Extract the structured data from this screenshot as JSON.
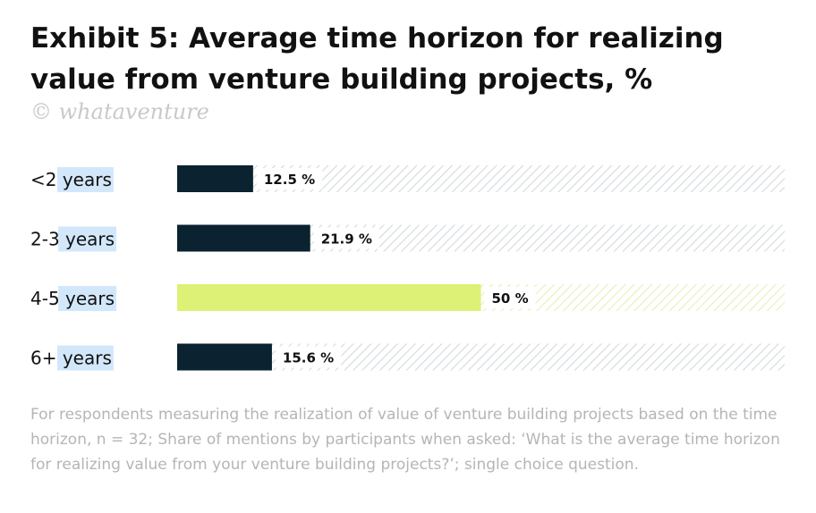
{
  "title": "Exhibit 5: Average time horizon for realizing value from venture building projects, %",
  "watermark": "© whataventure",
  "footnote": "For respondents measuring the realization of value of venture building projects based on the time horizon, n = 32; Share of mentions by participants when asked: ‘What is the average time horizon for realizing value from your venture building projects?’; single choice question.",
  "colors": {
    "dark_bar": "#0b2230",
    "highlight_bar": "#dcf176",
    "hatch_dark": "#d3d9dd",
    "hatch_highlight": "#e5f0b6",
    "label_highlight": "#d3e7fb"
  },
  "chart_data": {
    "type": "bar",
    "orientation": "horizontal",
    "categories": [
      "<2 years",
      "2-3 years",
      "4-5 years",
      "6+ years"
    ],
    "values": [
      12.5,
      21.9,
      50,
      15.6
    ],
    "value_labels": [
      "12.5 %",
      "21.9 %",
      "50 %",
      "15.6 %"
    ],
    "highlighted": [
      false,
      false,
      true,
      false
    ],
    "xlim": [
      0,
      100
    ],
    "unit": "%"
  }
}
